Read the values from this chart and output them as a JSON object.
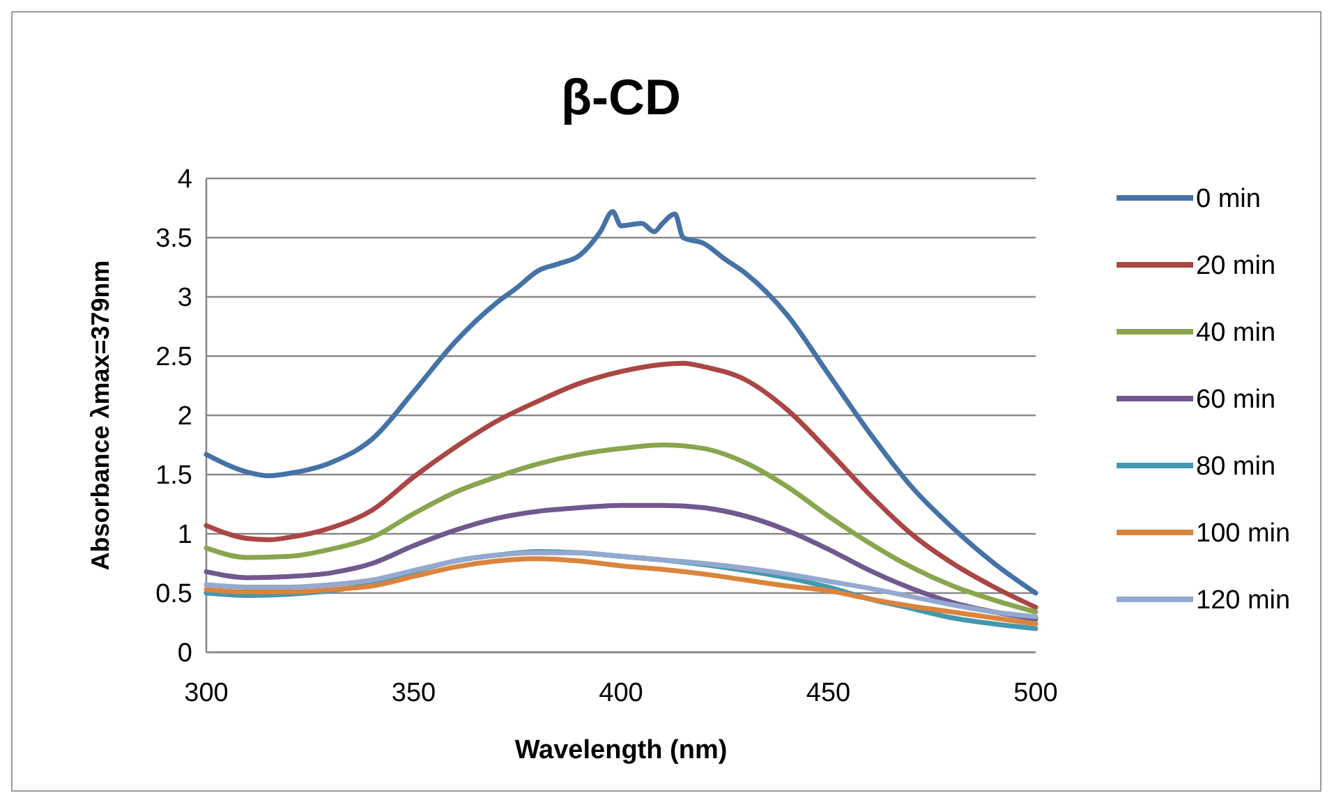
{
  "chart_data": {
    "type": "line",
    "title": "β-CD",
    "xlabel": "Wavelength (nm)",
    "ylabel": "Absorbance λmax=379nm",
    "xlim": [
      300,
      500
    ],
    "xticks": [
      300,
      350,
      400,
      450,
      500
    ],
    "ylim": [
      0,
      4
    ],
    "yticks": [
      0,
      0.5,
      1,
      1.5,
      2,
      2.5,
      3,
      3.5,
      4
    ],
    "grid": "y",
    "legend": "right",
    "marker": "none",
    "line_style": "solid",
    "series": [
      {
        "name": "0 min",
        "color": "#4572a7",
        "x": [
          300,
          310,
          315,
          320,
          330,
          340,
          350,
          360,
          370,
          375,
          380,
          385,
          390,
          395,
          398,
          400,
          405,
          408,
          410,
          413,
          415,
          420,
          425,
          430,
          440,
          450,
          460,
          470,
          480,
          490,
          500
        ],
        "values": [
          1.67,
          1.52,
          1.49,
          1.51,
          1.6,
          1.8,
          2.2,
          2.62,
          2.95,
          3.08,
          3.22,
          3.28,
          3.35,
          3.55,
          3.72,
          3.6,
          3.62,
          3.55,
          3.62,
          3.7,
          3.5,
          3.45,
          3.32,
          3.2,
          2.85,
          2.35,
          1.85,
          1.4,
          1.05,
          0.75,
          0.5
        ]
      },
      {
        "name": "20 min",
        "color": "#aa4643",
        "x": [
          300,
          310,
          315,
          320,
          330,
          340,
          350,
          360,
          370,
          380,
          390,
          400,
          410,
          415,
          420,
          430,
          440,
          450,
          460,
          470,
          480,
          490,
          500
        ],
        "values": [
          1.07,
          0.96,
          0.95,
          0.97,
          1.05,
          1.2,
          1.48,
          1.73,
          1.95,
          2.12,
          2.27,
          2.37,
          2.43,
          2.44,
          2.41,
          2.3,
          2.05,
          1.7,
          1.33,
          1.0,
          0.75,
          0.55,
          0.38
        ]
      },
      {
        "name": "40 min",
        "color": "#89a54e",
        "x": [
          300,
          310,
          320,
          330,
          340,
          350,
          360,
          370,
          380,
          390,
          400,
          410,
          420,
          430,
          440,
          450,
          460,
          470,
          480,
          490,
          500
        ],
        "values": [
          0.88,
          0.8,
          0.81,
          0.87,
          0.97,
          1.17,
          1.35,
          1.48,
          1.59,
          1.67,
          1.72,
          1.75,
          1.72,
          1.6,
          1.4,
          1.15,
          0.92,
          0.72,
          0.56,
          0.44,
          0.34
        ]
      },
      {
        "name": "60 min",
        "color": "#71588f",
        "x": [
          300,
          310,
          320,
          330,
          340,
          350,
          360,
          370,
          380,
          390,
          400,
          410,
          420,
          430,
          440,
          450,
          460,
          470,
          480,
          490,
          500
        ],
        "values": [
          0.68,
          0.63,
          0.64,
          0.67,
          0.75,
          0.9,
          1.03,
          1.13,
          1.19,
          1.22,
          1.24,
          1.24,
          1.22,
          1.15,
          1.03,
          0.87,
          0.69,
          0.54,
          0.42,
          0.34,
          0.28
        ]
      },
      {
        "name": "80 min",
        "color": "#4198af",
        "x": [
          300,
          310,
          320,
          330,
          340,
          350,
          360,
          370,
          380,
          390,
          400,
          410,
          420,
          430,
          440,
          450,
          460,
          470,
          480,
          490,
          500
        ],
        "values": [
          0.5,
          0.48,
          0.49,
          0.52,
          0.58,
          0.68,
          0.77,
          0.82,
          0.85,
          0.84,
          0.81,
          0.78,
          0.74,
          0.69,
          0.63,
          0.55,
          0.45,
          0.37,
          0.29,
          0.24,
          0.2
        ]
      },
      {
        "name": "100 min",
        "color": "#db843d",
        "x": [
          300,
          310,
          320,
          330,
          340,
          350,
          360,
          370,
          380,
          390,
          400,
          410,
          420,
          430,
          440,
          450,
          460,
          470,
          480,
          490,
          500
        ],
        "values": [
          0.53,
          0.51,
          0.51,
          0.53,
          0.56,
          0.64,
          0.72,
          0.77,
          0.79,
          0.77,
          0.73,
          0.7,
          0.66,
          0.61,
          0.56,
          0.52,
          0.45,
          0.39,
          0.34,
          0.29,
          0.24
        ]
      },
      {
        "name": "120 min",
        "color": "#93a9cf",
        "x": [
          300,
          310,
          320,
          330,
          340,
          350,
          360,
          370,
          380,
          390,
          400,
          410,
          420,
          430,
          440,
          450,
          460,
          470,
          480,
          490,
          500
        ],
        "values": [
          0.57,
          0.55,
          0.55,
          0.57,
          0.61,
          0.69,
          0.77,
          0.82,
          0.84,
          0.84,
          0.81,
          0.78,
          0.75,
          0.71,
          0.66,
          0.6,
          0.54,
          0.47,
          0.4,
          0.34,
          0.3
        ]
      }
    ]
  }
}
